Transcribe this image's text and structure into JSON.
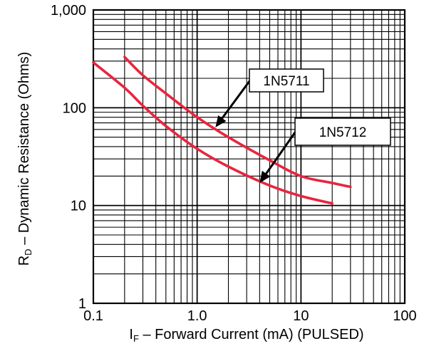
{
  "chart_data": {
    "type": "line",
    "title": "",
    "xlabel": {
      "symbol": "I",
      "subscript": "F",
      "text": " – Forward Current (mA) (PULSED)"
    },
    "ylabel": {
      "symbol": "R",
      "subscript": "D",
      "text": " – Dynamic Resistance (Ohms)"
    },
    "x_scale": "log",
    "y_scale": "log",
    "xlim": [
      0.1,
      100
    ],
    "ylim": [
      1,
      1000
    ],
    "x_ticks": [
      {
        "value": 0.1,
        "label": "0.1"
      },
      {
        "value": 1,
        "label": "1.0"
      },
      {
        "value": 10,
        "label": "10"
      },
      {
        "value": 100,
        "label": "100"
      }
    ],
    "y_ticks": [
      {
        "value": 1,
        "label": "1"
      },
      {
        "value": 10,
        "label": "10"
      },
      {
        "value": 100,
        "label": "100"
      },
      {
        "value": 1000,
        "label": "1,000"
      }
    ],
    "grid": true,
    "series_color": "#e8253f",
    "series": [
      {
        "name": "1N5711",
        "x": [
          0.2,
          0.3,
          0.5,
          1,
          2,
          5,
          10,
          20,
          30
        ],
        "y": [
          330,
          215,
          140,
          80,
          50,
          29,
          20,
          17,
          15.5
        ]
      },
      {
        "name": "1N5712",
        "x": [
          0.1,
          0.2,
          0.3,
          0.5,
          1,
          2,
          5,
          10,
          20
        ],
        "y": [
          290,
          160,
          105,
          65,
          38,
          25,
          16,
          12.5,
          10.5
        ]
      }
    ],
    "annotations": [
      {
        "series": "1N5711",
        "text": "1N5711",
        "arrow_to": {
          "x": 1.5,
          "y": 63
        }
      },
      {
        "series": "1N5712",
        "text": "1N5712",
        "arrow_to": {
          "x": 4,
          "y": 17
        }
      }
    ]
  }
}
